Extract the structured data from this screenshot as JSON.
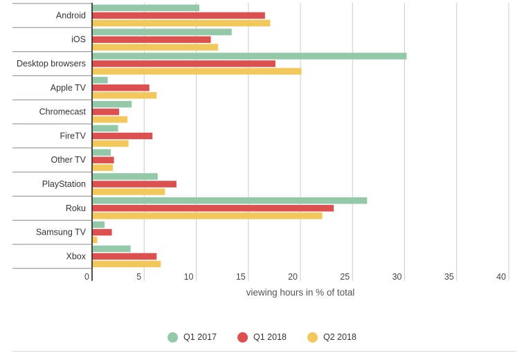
{
  "chart_data": {
    "type": "bar",
    "orientation": "horizontal",
    "categories": [
      "Android",
      "iOS",
      "Desktop browsers",
      "Apple TV",
      "Chromecast",
      "FireTV",
      "Other TV",
      "PlayStation",
      "Roku",
      "Samsung TV",
      "Xbox"
    ],
    "series": [
      {
        "name": "Q1 2017",
        "color": "#93c9a8",
        "values": [
          10.3,
          13.4,
          30.2,
          1.5,
          3.8,
          2.5,
          1.8,
          6.3,
          26.4,
          1.2,
          3.7
        ]
      },
      {
        "name": "Q1 2018",
        "color": "#dc5050",
        "values": [
          16.6,
          11.4,
          17.6,
          5.5,
          2.6,
          5.8,
          2.1,
          8.1,
          23.2,
          1.9,
          6.2
        ]
      },
      {
        "name": "Q2 2018",
        "color": "#f2c75c",
        "values": [
          17.1,
          12.1,
          20.1,
          6.2,
          3.4,
          3.5,
          2.0,
          7.0,
          22.1,
          0.5,
          6.6
        ]
      }
    ],
    "xlabel": "viewing hours in % of total",
    "xlim": [
      0,
      40
    ],
    "xticks": [
      0,
      5,
      10,
      15,
      20,
      25,
      30,
      35,
      40
    ],
    "grid": true,
    "legend_position": "bottom"
  }
}
